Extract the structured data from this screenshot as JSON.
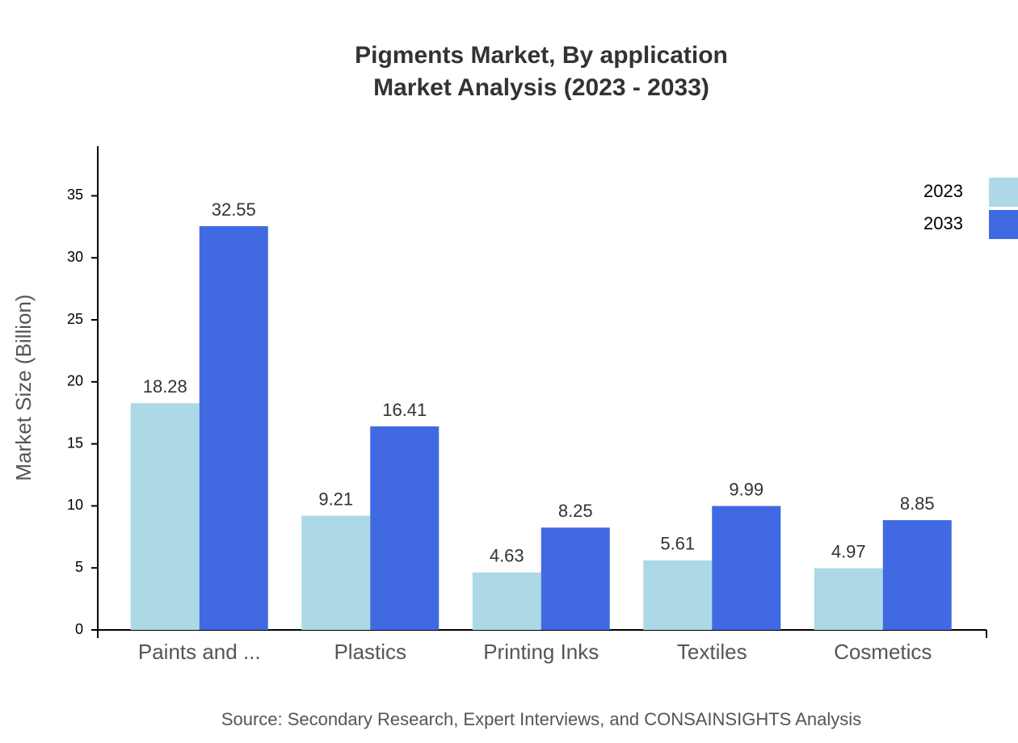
{
  "chart_data": {
    "type": "bar",
    "title": "Pigments Market, By application",
    "subtitle": "Market Analysis (2023 - 2033)",
    "y_label": "Market Size (Billion)",
    "source": "Source: Secondary Research, Expert Interviews, and CONSAINSIGHTS Analysis",
    "categories": [
      "Paints and ...",
      "Plastics",
      "Printing Inks",
      "Textiles",
      "Cosmetics"
    ],
    "series": [
      {
        "name": "2023",
        "color": "#add8e6",
        "values": [
          18.28,
          9.21,
          4.63,
          5.61,
          4.97
        ]
      },
      {
        "name": "2033",
        "color": "#4169e1",
        "values": [
          32.55,
          16.41,
          8.25,
          9.99,
          8.85
        ]
      }
    ],
    "ylim": [
      0,
      39
    ],
    "yticks": [
      0,
      5,
      10,
      15,
      20,
      25,
      30,
      35
    ],
    "grid": false,
    "legend": "top-right"
  }
}
